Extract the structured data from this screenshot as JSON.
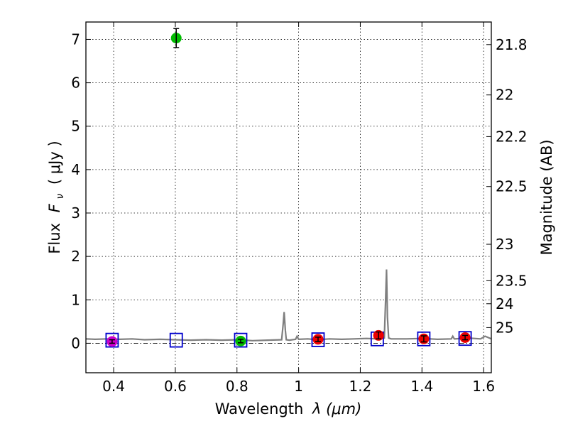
{
  "chart_data": {
    "type": "scatter",
    "xlabel_prefix": "Wavelength",
    "xlabel_symbol": "λ (μm)",
    "ylabel_prefix": "Flux",
    "ylabel_symbol": "F",
    "ylabel_subscript": "ν",
    "ylabel_units": "( μJy )",
    "y2label": "Magnitude (AB)",
    "xlim": [
      0.31,
      1.625
    ],
    "ylim": [
      -0.68,
      7.4
    ],
    "grid": true,
    "x_ticks": [
      0.4,
      0.6,
      0.8,
      1.0,
      1.2,
      1.4,
      1.6
    ],
    "x_tick_labels": [
      "0.4",
      "0.6",
      "0.8",
      "1",
      "1.2",
      "1.4",
      "1.6"
    ],
    "y_ticks": [
      0,
      1,
      2,
      3,
      4,
      5,
      6,
      7
    ],
    "y_tick_labels": [
      "0",
      "1",
      "2",
      "3",
      "4",
      "5",
      "6",
      "7"
    ],
    "y2_ticks": [
      {
        "label": "21.8",
        "flux": 6.88
      },
      {
        "label": "22",
        "flux": 5.72
      },
      {
        "label": "22.2",
        "flux": 4.76
      },
      {
        "label": "22.5",
        "flux": 3.61
      },
      {
        "label": "23",
        "flux": 2.28
      },
      {
        "label": "23.5",
        "flux": 1.44
      },
      {
        "label": "24",
        "flux": 0.91
      },
      {
        "label": "25",
        "flux": 0.36
      }
    ],
    "colors": {
      "spectrum": "#7f7f7f",
      "model_boxes": "#0000cc",
      "red_points": "#ee0000",
      "green_points": "#00bb00",
      "magenta_points": "#cc00cc",
      "errorbar": "#000000"
    },
    "spectrum": {
      "name": "model spectrum",
      "x": [
        0.31,
        0.34,
        0.38,
        0.42,
        0.46,
        0.5,
        0.55,
        0.6,
        0.65,
        0.7,
        0.75,
        0.8,
        0.85,
        0.9,
        0.945,
        0.95,
        0.953,
        0.957,
        0.96,
        0.97,
        0.99,
        0.995,
        1.0,
        1.03,
        1.06,
        1.1,
        1.14,
        1.18,
        1.22,
        1.26,
        1.278,
        1.282,
        1.285,
        1.288,
        1.292,
        1.3,
        1.35,
        1.4,
        1.45,
        1.495,
        1.5,
        1.505,
        1.55,
        1.59,
        1.605,
        1.625
      ],
      "y": [
        0.1,
        0.09,
        0.1,
        0.09,
        0.1,
        0.08,
        0.09,
        0.08,
        0.07,
        0.08,
        0.07,
        0.08,
        0.06,
        0.07,
        0.08,
        0.45,
        0.72,
        0.3,
        0.08,
        0.07,
        0.09,
        0.16,
        0.09,
        0.1,
        0.08,
        0.1,
        0.09,
        0.1,
        0.11,
        0.1,
        0.12,
        1.0,
        1.7,
        0.6,
        0.12,
        0.1,
        0.1,
        0.11,
        0.09,
        0.1,
        0.16,
        0.1,
        0.12,
        0.1,
        0.16,
        0.1
      ]
    },
    "series": [
      {
        "name": "model photometry (boxes)",
        "marker": "open-square",
        "x": [
          0.395,
          0.603,
          0.812,
          1.063,
          1.255,
          1.406,
          1.54
        ],
        "y": [
          0.07,
          0.07,
          0.07,
          0.08,
          0.1,
          0.1,
          0.11
        ]
      },
      {
        "name": "green points",
        "marker": "filled-circle",
        "x": [
          0.603,
          0.812
        ],
        "y": [
          7.03,
          0.05
        ],
        "yerr": [
          0.22,
          0.04
        ]
      },
      {
        "name": "magenta points",
        "marker": "filled-circle",
        "x": [
          0.395
        ],
        "y": [
          0.04
        ],
        "yerr": [
          0.04
        ]
      },
      {
        "name": "red points",
        "marker": "filled-circle",
        "x": [
          1.063,
          1.259,
          1.406,
          1.54
        ],
        "y": [
          0.09,
          0.18,
          0.1,
          0.13
        ],
        "yerr": [
          0.05,
          0.08,
          0.07,
          0.05
        ]
      }
    ]
  }
}
